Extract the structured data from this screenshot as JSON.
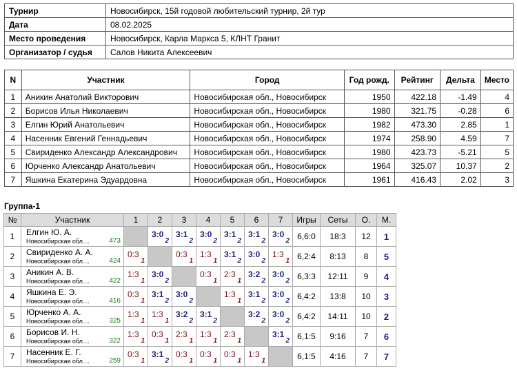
{
  "info": [
    {
      "k": "Турнир",
      "v": "Новосибирск, 15й годовой любительский турнир, 2й тур"
    },
    {
      "k": "Дата",
      "v": "08.02.2025"
    },
    {
      "k": "Место проведения",
      "v": "Новосибирск, Карла Маркса 5, КЛНТ Гранит"
    },
    {
      "k": "Организатор / судья",
      "v": "Салов Никита Алексеевич"
    }
  ],
  "participants": {
    "headers": [
      "N",
      "Участник",
      "Город",
      "Год рожд.",
      "Рейтинг",
      "Дельта",
      "Место"
    ],
    "rows": [
      [
        "1",
        "Аникин Анатолий Викторович",
        "Новосибирская обл., Новосибирск",
        "1950",
        "422.18",
        "-1.49",
        "4"
      ],
      [
        "2",
        "Борисов Илья Николаевич",
        "Новосибирская обл., Новосибирск",
        "1980",
        "321.75",
        "-0.28",
        "6"
      ],
      [
        "3",
        "Елгин Юрий Анатольевич",
        "Новосибирская обл., Новосибирск",
        "1982",
        "473.30",
        "2.85",
        "1"
      ],
      [
        "4",
        "Насенник Евгений Геннадьевич",
        "Новосибирская обл., Новосибирск",
        "1974",
        "258.90",
        "4.59",
        "7"
      ],
      [
        "5",
        "Свириденко Александр Александрович",
        "Новосибирская обл., Новосибирск",
        "1980",
        "423.73",
        "-5.21",
        "5"
      ],
      [
        "6",
        "Юрченко Александр Анатольевич",
        "Новосибирская обл., Новосибирск",
        "1964",
        "325.07",
        "10.37",
        "2"
      ],
      [
        "7",
        "Яшкина Екатерина Эдуардовна",
        "Новосибирская обл., Новосибирск",
        "1961",
        "416.43",
        "2.02",
        "3"
      ]
    ]
  },
  "group": {
    "title": "Группа-1",
    "headers": [
      "№",
      "Участник",
      "1",
      "2",
      "3",
      "4",
      "5",
      "6",
      "7",
      "Игры",
      "Сеты",
      "О.",
      "М."
    ],
    "rows": [
      {
        "n": "1",
        "name": "Елгин Ю. А.",
        "city": "Новосибирская обл....",
        "rating": "473",
        "cells": [
          null,
          [
            "3:0",
            "2"
          ],
          [
            "3:1",
            "2"
          ],
          [
            "3:0",
            "2"
          ],
          [
            "3:1",
            "2"
          ],
          [
            "3:1",
            "2"
          ],
          [
            "3:0",
            "2"
          ]
        ],
        "games": "6,6:0",
        "sets": "18:3",
        "points": "12",
        "place": "1"
      },
      {
        "n": "2",
        "name": "Свириденко А. А.",
        "city": "Новосибирская обл....",
        "rating": "424",
        "cells": [
          [
            "0:3",
            "1"
          ],
          null,
          [
            "0:3",
            "1"
          ],
          [
            "1:3",
            "1"
          ],
          [
            "3:1",
            "2"
          ],
          [
            "3:0",
            "2"
          ],
          [
            "1:3",
            "1"
          ]
        ],
        "games": "6,2:4",
        "sets": "8:13",
        "points": "8",
        "place": "5"
      },
      {
        "n": "3",
        "name": "Аникин А. В.",
        "city": "Новосибирская обл....",
        "rating": "422",
        "cells": [
          [
            "1:3",
            "1"
          ],
          [
            "3:0",
            "2"
          ],
          null,
          [
            "0:3",
            "1"
          ],
          [
            "2:3",
            "1"
          ],
          [
            "3:2",
            "2"
          ],
          [
            "3:0",
            "2"
          ]
        ],
        "games": "6,3:3",
        "sets": "12:11",
        "points": "9",
        "place": "4"
      },
      {
        "n": "4",
        "name": "Яшкина Е. Э.",
        "city": "Новосибирская обл....",
        "rating": "416",
        "cells": [
          [
            "0:3",
            "1"
          ],
          [
            "3:1",
            "2"
          ],
          [
            "3:0",
            "2"
          ],
          null,
          [
            "1:3",
            "1"
          ],
          [
            "3:1",
            "2"
          ],
          [
            "3:0",
            "2"
          ]
        ],
        "games": "6,4:2",
        "sets": "13:8",
        "points": "10",
        "place": "3"
      },
      {
        "n": "5",
        "name": "Юрченко А. А.",
        "city": "Новосибирская обл....",
        "rating": "325",
        "cells": [
          [
            "1:3",
            "1"
          ],
          [
            "1:3",
            "1"
          ],
          [
            "3:2",
            "2"
          ],
          [
            "3:1",
            "2"
          ],
          null,
          [
            "3:2",
            "2"
          ],
          [
            "3:0",
            "2"
          ]
        ],
        "games": "6,4:2",
        "sets": "14:11",
        "points": "10",
        "place": "2"
      },
      {
        "n": "6",
        "name": "Борисов И. Н.",
        "city": "Новосибирская обл....",
        "rating": "322",
        "cells": [
          [
            "1:3",
            "1"
          ],
          [
            "0:3",
            "1"
          ],
          [
            "2:3",
            "1"
          ],
          [
            "1:3",
            "1"
          ],
          [
            "2:3",
            "1"
          ],
          null,
          [
            "3:1",
            "2"
          ]
        ],
        "games": "6,1:5",
        "sets": "9:16",
        "points": "7",
        "place": "6"
      },
      {
        "n": "7",
        "name": "Насенник Е. Г.",
        "city": "Новосибирская обл....",
        "rating": "259",
        "cells": [
          [
            "0:3",
            "1"
          ],
          [
            "3:1",
            "2"
          ],
          [
            "0:3",
            "1"
          ],
          [
            "0:3",
            "1"
          ],
          [
            "0:3",
            "1"
          ],
          [
            "1:3",
            "1"
          ],
          null
        ],
        "games": "6,1:5",
        "sets": "4:16",
        "points": "7",
        "place": "7"
      }
    ]
  }
}
